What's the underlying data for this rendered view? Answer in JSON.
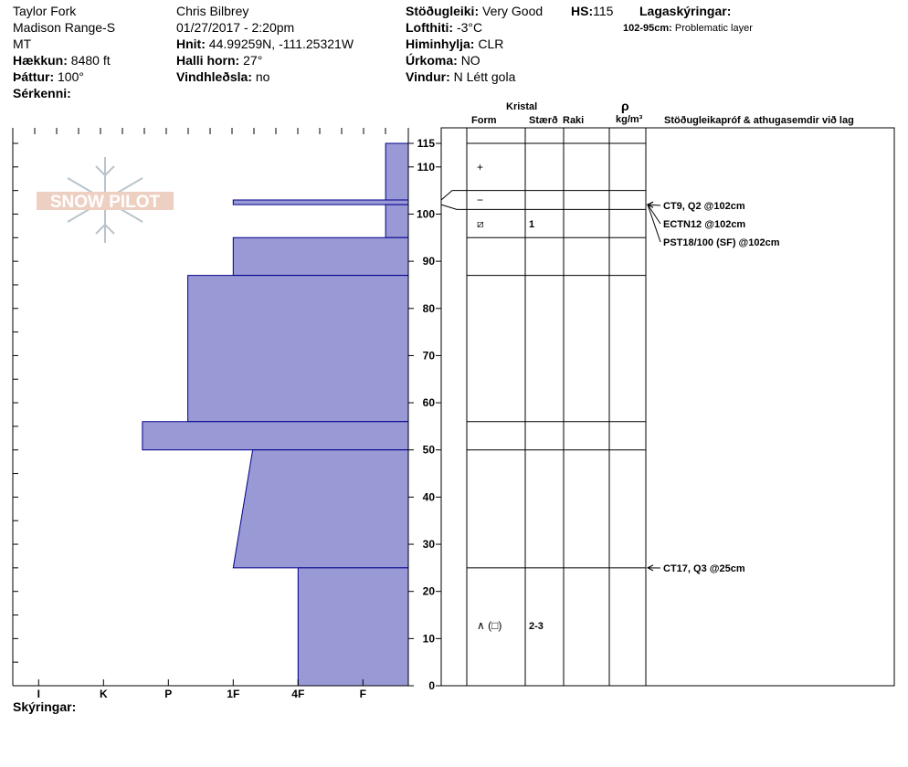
{
  "header": {
    "location": "Taylor Fork",
    "range": "Madison Range-S",
    "state": "MT",
    "elevation_label": "Hækkun:",
    "elevation_value": "8480 ft",
    "aspect_label": "Þáttur:",
    "aspect_value": "100°",
    "specifics_label": "Sérkenni:",
    "observer": "Chris Bilbrey",
    "datetime": "01/27/2017 - 2:20pm",
    "coords_label": "Hnit:",
    "coords_value": "44.99259N, -111.25321W",
    "slope_label": "Halli horn:",
    "slope_value": "27°",
    "wind_loading_label": "Vindhleðsla:",
    "wind_loading_value": "no",
    "stability_label": "Stöðugleiki:",
    "stability_value": "Very Good",
    "hs_label": "HS:",
    "hs_value": "115",
    "air_temp_label": "Lofthiti:",
    "air_temp_value": "-3°C",
    "sky_label": "Himinhylja:",
    "sky_value": "CLR",
    "precip_label": "Úrkoma:",
    "precip_value": "NO",
    "wind_label": "Vindur:",
    "wind_value": "N Létt gola",
    "layer_notes_label": "Lagaskýringar:",
    "layer_note_range": "102-95cm:",
    "layer_note_text": "Problematic layer",
    "legend_label": "Skýringar:"
  },
  "columns": {
    "crystal": "Kristal",
    "form": "Form",
    "size": "Stærð",
    "moisture": "Raki",
    "density_symbol": "ρ",
    "density_unit": "kg/m³",
    "tests": "Stöðugleikapróf & athugasemdir við lag"
  },
  "logo": {
    "text": "SNOW PILOT",
    "color": "#e8b4a0"
  },
  "chart_data": {
    "type": "area",
    "title": "",
    "ylabel": "",
    "xlabel": "",
    "ylim": [
      0,
      115
    ],
    "y_ticks": [
      0,
      10,
      20,
      30,
      40,
      50,
      60,
      70,
      80,
      90,
      100,
      110,
      115
    ],
    "hardness_scale": [
      "F",
      "4F",
      "1F",
      "P",
      "K",
      "I"
    ],
    "hardness_fill": "#9999d6",
    "hardness_outline": "#00008b",
    "hardness_profile": [
      {
        "top": 115,
        "bottom": 103,
        "hardness_top": 0.35,
        "hardness_bottom": 0.35
      },
      {
        "top": 103,
        "bottom": 102,
        "hardness_top": 2.7,
        "hardness_bottom": 2.7
      },
      {
        "top": 102,
        "bottom": 95,
        "hardness_top": 0.35,
        "hardness_bottom": 0.35
      },
      {
        "top": 95,
        "bottom": 87,
        "hardness_top": 2.7,
        "hardness_bottom": 2.7
      },
      {
        "top": 87,
        "bottom": 56,
        "hardness_top": 3.4,
        "hardness_bottom": 3.4
      },
      {
        "top": 56,
        "bottom": 50,
        "hardness_top": 4.1,
        "hardness_bottom": 4.1
      },
      {
        "top": 50,
        "bottom": 25,
        "hardness_top": 2.4,
        "hardness_bottom": 2.7
      },
      {
        "top": 25,
        "bottom": 0,
        "hardness_top": 1.7,
        "hardness_bottom": 1.7
      }
    ],
    "layer_boundaries": [
      115,
      105,
      101,
      95,
      87,
      56,
      50,
      25,
      0
    ],
    "layers": [
      {
        "top": 115,
        "bottom": 105,
        "form": "+",
        "size": ""
      },
      {
        "top": 105,
        "bottom": 101,
        "form": "−",
        "size": ""
      },
      {
        "top": 101,
        "bottom": 95,
        "form": "⧄",
        "size": "1"
      },
      {
        "top": 25,
        "bottom": 0,
        "form": "∧ (□)",
        "size": "2-3"
      }
    ],
    "tests": [
      {
        "label": "CT9, Q2 @102cm",
        "depth": 102
      },
      {
        "label": "ECTN12 @102cm",
        "depth": 102
      },
      {
        "label": "PST18/100 (SF) @102cm",
        "depth": 102
      },
      {
        "label": "CT17, Q3 @25cm",
        "depth": 25
      }
    ]
  }
}
